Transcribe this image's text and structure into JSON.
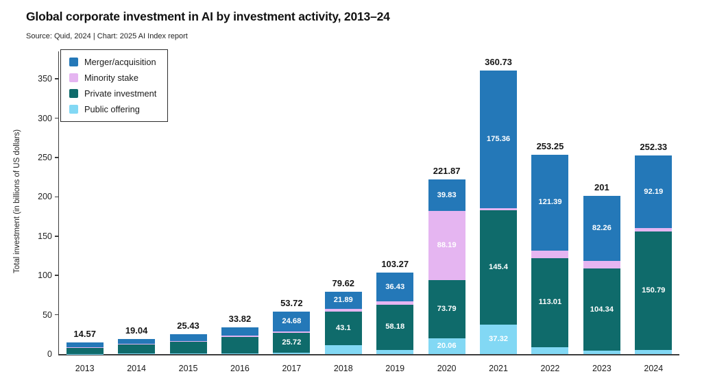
{
  "header": {
    "title": "Global corporate investment in AI by investment activity, 2013–24",
    "subtitle": "Source: Quid, 2024 | Chart: 2025 AI Index report"
  },
  "legend": {
    "items": [
      {
        "label": "Merger/acquisition",
        "key": "mna"
      },
      {
        "label": "Minority stake",
        "key": "minority"
      },
      {
        "label": "Private investment",
        "key": "private"
      },
      {
        "label": "Public offering",
        "key": "public"
      }
    ]
  },
  "colors": {
    "mna": "#2478b8",
    "minority": "#e5b5f1",
    "private": "#0f6b6b",
    "public": "#82d8f4",
    "axis": "#3c3c3c",
    "text": "#1a1a1a",
    "label_on_bar": "#ffffff"
  },
  "chart_data": {
    "type": "bar",
    "stacked": true,
    "title": "Global corporate investment in AI by investment activity, 2013–24",
    "xlabel": "",
    "ylabel": "Total investment (in billions of US dollars)",
    "categories": [
      "2013",
      "2014",
      "2015",
      "2016",
      "2017",
      "2018",
      "2019",
      "2020",
      "2021",
      "2022",
      "2023",
      "2024"
    ],
    "y_ticks": [
      0,
      50,
      100,
      150,
      200,
      250,
      300,
      350
    ],
    "ylim": [
      0,
      385
    ],
    "grid": false,
    "legend_position": "top-left-inside",
    "series": [
      {
        "name": "Public offering",
        "key": "public",
        "values": [
          0.4,
          0.5,
          0.7,
          0.9,
          1.5,
          11.3,
          4.8,
          20.06,
          37.32,
          8.75,
          4.3,
          4.8
        ],
        "labels": [
          null,
          null,
          null,
          null,
          null,
          null,
          null,
          "20.06",
          "37.32",
          null,
          null,
          null
        ]
      },
      {
        "name": "Private investment",
        "key": "private",
        "values": [
          7.7,
          11.5,
          15.1,
          20.9,
          25.72,
          43.1,
          58.18,
          73.79,
          145.4,
          113.01,
          104.34,
          150.79
        ],
        "labels": [
          null,
          null,
          null,
          null,
          "25.72",
          "43.1",
          "58.18",
          "73.79",
          "145.4",
          "113.01",
          "104.34",
          "150.79"
        ]
      },
      {
        "name": "Minority stake",
        "key": "minority",
        "values": [
          1.0,
          0.8,
          1.1,
          1.5,
          1.82,
          3.33,
          3.86,
          88.19,
          2.65,
          10.1,
          10.1,
          4.55
        ],
        "labels": [
          null,
          null,
          null,
          null,
          null,
          null,
          null,
          "88.19",
          null,
          null,
          null,
          null
        ]
      },
      {
        "name": "Merger/acquisition",
        "key": "mna",
        "values": [
          5.47,
          6.24,
          8.53,
          10.52,
          24.68,
          21.89,
          36.43,
          39.83,
          175.36,
          121.39,
          82.26,
          92.19
        ],
        "labels": [
          null,
          null,
          null,
          null,
          "24.68",
          "21.89",
          "36.43",
          "39.83",
          "175.36",
          "121.39",
          "82.26",
          "92.19"
        ]
      }
    ],
    "totals": [
      14.57,
      19.04,
      25.43,
      33.82,
      53.72,
      79.62,
      103.27,
      221.87,
      360.73,
      253.25,
      201,
      252.33
    ],
    "total_labels": [
      "14.57",
      "19.04",
      "25.43",
      "33.82",
      "53.72",
      "79.62",
      "103.27",
      "221.87",
      "360.73",
      "253.25",
      "201",
      "252.33"
    ]
  }
}
